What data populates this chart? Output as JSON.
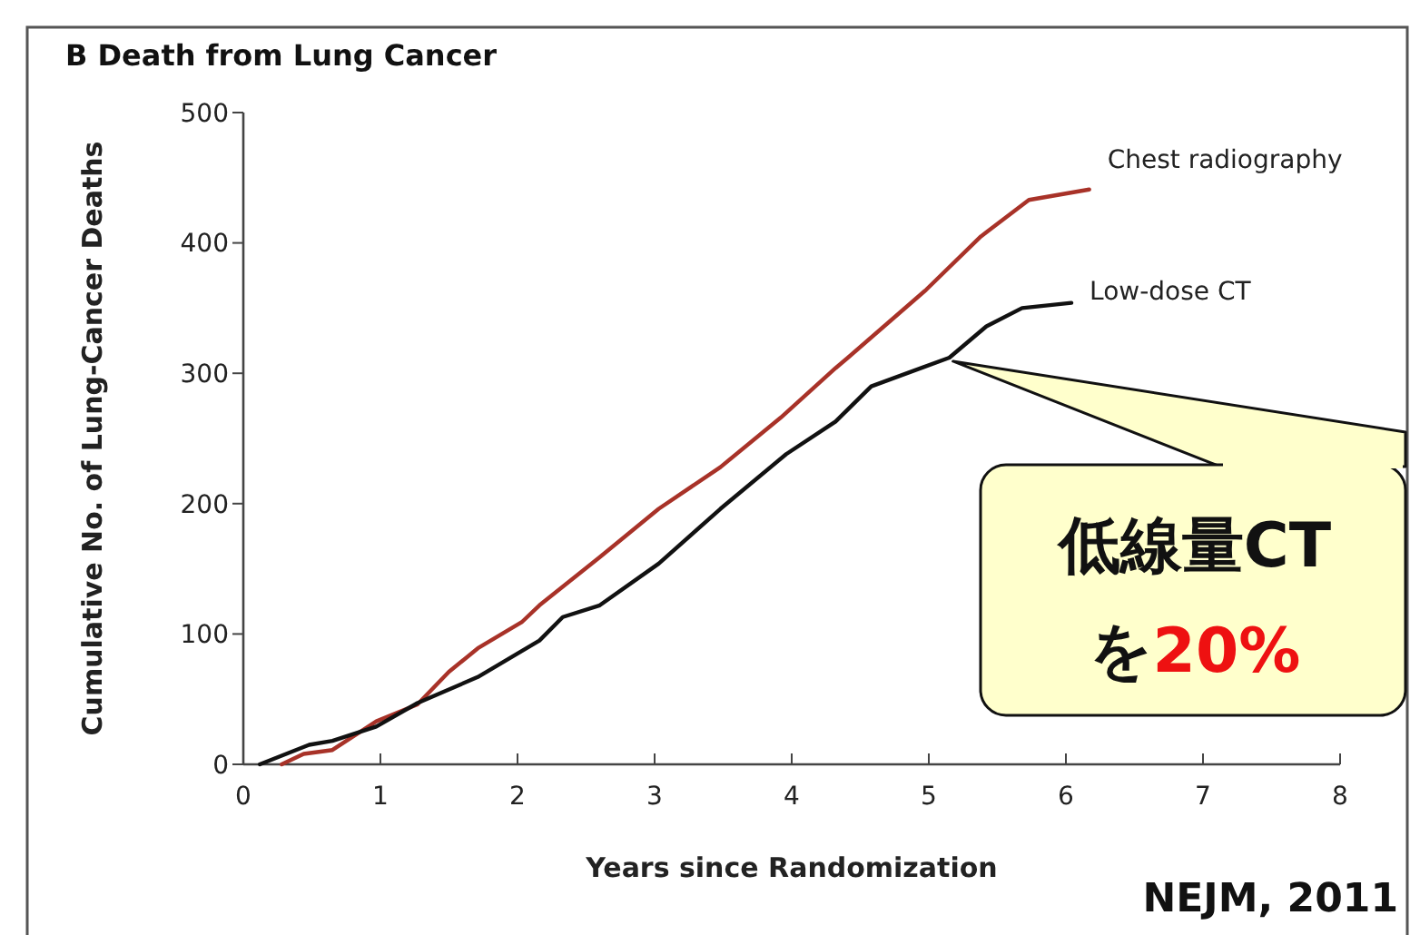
{
  "chart_data": {
    "type": "line",
    "title": "B  Death from Lung Cancer",
    "xlabel": "Years since Randomization",
    "ylabel": "Cumulative No. of Lung-Cancer Deaths",
    "xlim": [
      0,
      8
    ],
    "xticks": [
      0,
      1,
      2,
      3,
      4,
      5,
      6,
      7,
      8
    ],
    "ylim": [
      0,
      500
    ],
    "yticks": [
      0,
      100,
      200,
      300,
      400,
      500
    ],
    "grid": false,
    "marker": "none",
    "line_style": "solid",
    "series": [
      {
        "name": "Chest radiography",
        "color": "#a83228",
        "x": [
          0.28,
          0.44,
          0.65,
          0.97,
          1.27,
          1.5,
          1.71,
          2.03,
          2.16,
          2.6,
          3.03,
          3.48,
          3.92,
          4.32,
          4.41,
          4.98,
          5.38,
          5.73,
          6.17
        ],
        "values": [
          0,
          8,
          11,
          33,
          46,
          71,
          89,
          109,
          122,
          159,
          196,
          228,
          266,
          304,
          312,
          364,
          405,
          433,
          441
        ]
      },
      {
        "name": "Low-dose CT",
        "color": "#111111",
        "x": [
          0.12,
          0.48,
          0.65,
          0.97,
          1.27,
          1.71,
          2.16,
          2.33,
          2.6,
          3.03,
          3.48,
          3.96,
          4.32,
          4.58,
          5.15,
          5.42,
          5.68,
          6.04
        ],
        "values": [
          0,
          15,
          18,
          29,
          47,
          67,
          95,
          113,
          122,
          154,
          196,
          238,
          263,
          290,
          312,
          336,
          350,
          354
        ]
      }
    ],
    "annotations": [
      {
        "text": "低線量CT",
        "x": 5.15,
        "y": 312
      },
      "を20%",
      "NEJM, 2011"
    ]
  }
}
